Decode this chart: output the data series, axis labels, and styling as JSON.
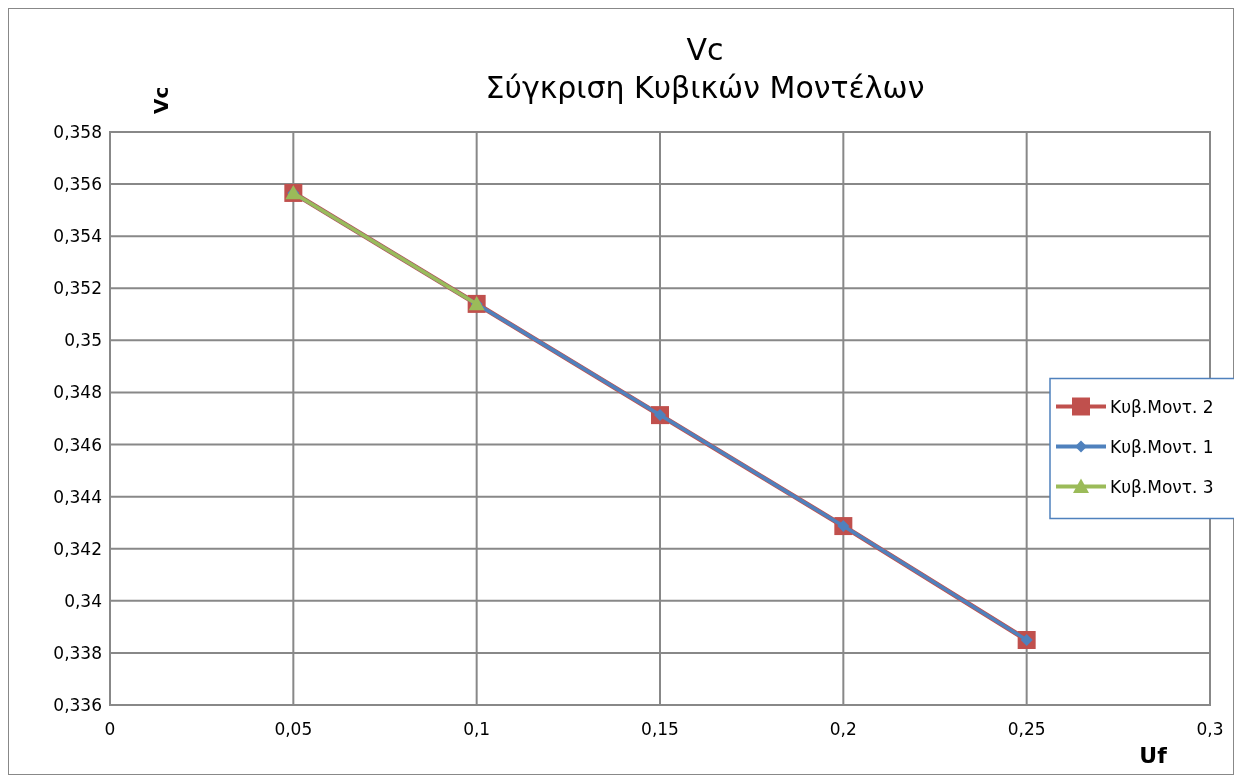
{
  "chart_data": {
    "type": "line",
    "title": [
      "Vc",
      "Σύγκριση Κυβικών Μοντέλων"
    ],
    "xlabel": "Uf",
    "ylabel": "Vc",
    "xlim": [
      0,
      0.3
    ],
    "xticks": [
      {
        "value": 0,
        "label": "0"
      },
      {
        "value": 0.05,
        "label": "0,05"
      },
      {
        "value": 0.1,
        "label": "0,1"
      },
      {
        "value": 0.15,
        "label": "0,15"
      },
      {
        "value": 0.2,
        "label": "0,2"
      },
      {
        "value": 0.25,
        "label": "0,25"
      },
      {
        "value": 0.3,
        "label": "0,3"
      }
    ],
    "ylim": [
      0.336,
      0.358
    ],
    "yticks": [
      {
        "value": 0.336,
        "label": "0,336"
      },
      {
        "value": 0.338,
        "label": "0,338"
      },
      {
        "value": 0.34,
        "label": "0,34"
      },
      {
        "value": 0.342,
        "label": "0,342"
      },
      {
        "value": 0.344,
        "label": "0,344"
      },
      {
        "value": 0.346,
        "label": "0,346"
      },
      {
        "value": 0.348,
        "label": "0,348"
      },
      {
        "value": 0.35,
        "label": "0,35"
      },
      {
        "value": 0.352,
        "label": "0,352"
      },
      {
        "value": 0.354,
        "label": "0,354"
      },
      {
        "value": 0.356,
        "label": "0,356"
      },
      {
        "value": 0.358,
        "label": "0,358"
      }
    ],
    "grid": true,
    "legend": "right",
    "line_style": "solid",
    "series": [
      {
        "name": "Κυβ.Μοντ. 2",
        "color": "#c0504d",
        "marker": "square",
        "x": [
          0.05,
          0.1,
          0.15,
          0.2,
          0.25
        ],
        "values": [
          0.35566,
          0.3514,
          0.34713,
          0.34287,
          0.3385
        ]
      },
      {
        "name": "Κυβ.Μοντ. 1",
        "color": "#4f81bd",
        "marker": "diamond",
        "x": [
          0.05,
          0.1,
          0.15,
          0.2,
          0.25
        ],
        "values": [
          0.35566,
          0.3514,
          0.34713,
          0.34287,
          0.3385
        ]
      },
      {
        "name": "Κυβ.Μοντ. 3",
        "color": "#9bbb59",
        "marker": "triangle",
        "x": [
          0.05,
          0.1
        ],
        "values": [
          0.35566,
          0.3514
        ]
      }
    ]
  }
}
